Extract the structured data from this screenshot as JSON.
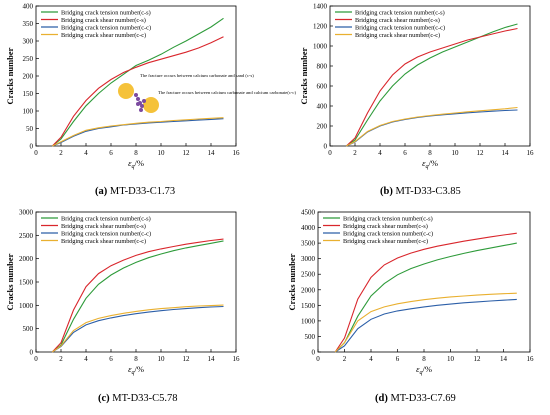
{
  "chart_data": [
    {
      "type": "line",
      "caption_letter": "(a)",
      "caption_name": "MT-D33-C1.73",
      "ylabel": "Cracks number",
      "xlabel": "ε",
      "xlabel_sub": "q",
      "xlabel_suffix": "/%",
      "xlim": [
        0,
        16
      ],
      "ylim": [
        0,
        400
      ],
      "xticks": [
        0,
        2,
        4,
        6,
        8,
        10,
        12,
        14,
        16
      ],
      "yticks": [
        0,
        50,
        100,
        150,
        200,
        250,
        300,
        350,
        400
      ],
      "legend_position": "top-left",
      "series": [
        {
          "name": "Bridging crack tension number(c-s)",
          "color": "#2e9b3a",
          "x": [
            1.3,
            2,
            3,
            4,
            5,
            6,
            7,
            8,
            9,
            10,
            11,
            12,
            13,
            14,
            15
          ],
          "y": [
            0,
            20,
            70,
            115,
            150,
            180,
            205,
            230,
            245,
            262,
            282,
            300,
            320,
            340,
            365
          ]
        },
        {
          "name": "Bridging crack shear number(c-s)",
          "color": "#d9262c",
          "x": [
            1.3,
            2,
            3,
            4,
            5,
            6,
            7,
            8,
            9,
            10,
            11,
            12,
            13,
            14,
            15
          ],
          "y": [
            0,
            25,
            85,
            130,
            165,
            190,
            210,
            225,
            238,
            248,
            258,
            268,
            280,
            295,
            312
          ]
        },
        {
          "name": "Bridging crack tension number(c-c)",
          "color": "#2c5fa8",
          "x": [
            1.3,
            2,
            3,
            4,
            5,
            6,
            7,
            8,
            9,
            10,
            11,
            12,
            13,
            14,
            15
          ],
          "y": [
            0,
            10,
            28,
            42,
            50,
            55,
            60,
            63,
            66,
            68,
            70,
            72,
            74,
            76,
            78
          ]
        },
        {
          "name": "Bridging crack shear number(c-c)",
          "color": "#e9b030",
          "x": [
            1.3,
            2,
            3,
            4,
            5,
            6,
            7,
            8,
            9,
            10,
            11,
            12,
            13,
            14,
            15
          ],
          "y": [
            0,
            12,
            30,
            45,
            52,
            57,
            61,
            65,
            68,
            70,
            73,
            75,
            77,
            79,
            81
          ]
        }
      ],
      "annotations": [
        "The fracture occurs between calcium carbonate and sand (c-s)",
        "The fracture occurs between calcium carbonate and calcium carbonate(c-c)"
      ]
    },
    {
      "type": "line",
      "caption_letter": "(b)",
      "caption_name": "MT-D33-C3.85",
      "ylabel": "Cracks number",
      "xlabel": "ε",
      "xlabel_sub": "q",
      "xlabel_suffix": "/%",
      "xlim": [
        0,
        16
      ],
      "ylim": [
        0,
        1400
      ],
      "xticks": [
        0,
        2,
        4,
        6,
        8,
        10,
        12,
        14,
        16
      ],
      "yticks": [
        0,
        200,
        400,
        600,
        800,
        1000,
        1200,
        1400
      ],
      "legend_position": "top-left",
      "series": [
        {
          "name": "Bridging crack tension number(c-s)",
          "color": "#2e9b3a",
          "x": [
            1.3,
            2,
            3,
            4,
            5,
            6,
            7,
            8,
            9,
            10,
            11,
            12,
            13,
            14,
            15
          ],
          "y": [
            0,
            60,
            260,
            450,
            600,
            720,
            810,
            880,
            940,
            990,
            1040,
            1090,
            1140,
            1185,
            1220
          ]
        },
        {
          "name": "Bridging crack shear number(c-s)",
          "color": "#d9262c",
          "x": [
            1.3,
            2,
            3,
            4,
            5,
            6,
            7,
            8,
            9,
            10,
            11,
            12,
            13,
            14,
            15
          ],
          "y": [
            0,
            80,
            330,
            550,
            710,
            820,
            890,
            940,
            980,
            1020,
            1060,
            1090,
            1120,
            1150,
            1175
          ]
        },
        {
          "name": "Bridging crack tension number(c-c)",
          "color": "#2c5fa8",
          "x": [
            1.3,
            2,
            3,
            4,
            5,
            6,
            7,
            8,
            9,
            10,
            11,
            12,
            13,
            14,
            15
          ],
          "y": [
            0,
            40,
            140,
            200,
            240,
            265,
            285,
            300,
            312,
            322,
            332,
            340,
            348,
            355,
            360
          ]
        },
        {
          "name": "Bridging crack shear number(c-c)",
          "color": "#e9b030",
          "x": [
            1.3,
            2,
            3,
            4,
            5,
            6,
            7,
            8,
            9,
            10,
            11,
            12,
            13,
            14,
            15
          ],
          "y": [
            0,
            45,
            145,
            205,
            245,
            270,
            290,
            305,
            318,
            330,
            342,
            352,
            362,
            372,
            385
          ]
        }
      ]
    },
    {
      "type": "line",
      "caption_letter": "(c)",
      "caption_name": "MT-D33-C5.78",
      "ylabel": "Cracks number",
      "xlabel": "ε",
      "xlabel_sub": "q",
      "xlabel_suffix": "/%",
      "xlim": [
        0,
        16
      ],
      "ylim": [
        0,
        3000
      ],
      "xticks": [
        0,
        2,
        4,
        6,
        8,
        10,
        12,
        14,
        16
      ],
      "yticks": [
        0,
        500,
        1000,
        1500,
        2000,
        2500,
        3000
      ],
      "legend_position": "top-left",
      "series": [
        {
          "name": "Bridging crack tension number(c-s)",
          "color": "#2e9b3a",
          "x": [
            1.3,
            2,
            3,
            4,
            5,
            6,
            7,
            8,
            9,
            10,
            11,
            12,
            13,
            14,
            15
          ],
          "y": [
            0,
            150,
            700,
            1150,
            1450,
            1650,
            1800,
            1920,
            2020,
            2100,
            2170,
            2230,
            2280,
            2330,
            2380
          ]
        },
        {
          "name": "Bridging crack shear number(c-s)",
          "color": "#d9262c",
          "x": [
            1.3,
            2,
            3,
            4,
            5,
            6,
            7,
            8,
            9,
            10,
            11,
            12,
            13,
            14,
            15
          ],
          "y": [
            0,
            200,
            900,
            1400,
            1680,
            1850,
            1970,
            2070,
            2150,
            2210,
            2260,
            2310,
            2350,
            2390,
            2420
          ]
        },
        {
          "name": "Bridging crack tension number(c-c)",
          "color": "#2c5fa8",
          "x": [
            1.3,
            2,
            3,
            4,
            5,
            6,
            7,
            8,
            9,
            10,
            11,
            12,
            13,
            14,
            15
          ],
          "y": [
            0,
            120,
            420,
            580,
            670,
            730,
            780,
            820,
            855,
            885,
            910,
            930,
            950,
            965,
            975
          ]
        },
        {
          "name": "Bridging crack shear number(c-c)",
          "color": "#e9b030",
          "x": [
            1.3,
            2,
            3,
            4,
            5,
            6,
            7,
            8,
            9,
            10,
            11,
            12,
            13,
            14,
            15
          ],
          "y": [
            0,
            130,
            460,
            630,
            720,
            780,
            830,
            870,
            905,
            930,
            950,
            970,
            985,
            995,
            1005
          ]
        }
      ]
    },
    {
      "type": "line",
      "caption_letter": "(d)",
      "caption_name": "MT-D33-C7.69",
      "ylabel": "Cracks number",
      "xlabel": "ε",
      "xlabel_sub": "q",
      "xlabel_suffix": "/%",
      "xlim": [
        0,
        16
      ],
      "ylim": [
        0,
        4500
      ],
      "xticks": [
        0,
        2,
        4,
        6,
        8,
        10,
        12,
        14,
        16
      ],
      "yticks": [
        0,
        500,
        1000,
        1500,
        2000,
        2500,
        3000,
        3500,
        4000,
        4500
      ],
      "legend_position": "top-left",
      "series": [
        {
          "name": "Bridging crack tension number(c-s)",
          "color": "#2e9b3a",
          "x": [
            1.3,
            2,
            3,
            4,
            5,
            6,
            7,
            8,
            9,
            10,
            11,
            12,
            13,
            14,
            15
          ],
          "y": [
            0,
            300,
            1150,
            1800,
            2200,
            2480,
            2680,
            2830,
            2960,
            3070,
            3170,
            3260,
            3340,
            3420,
            3500
          ]
        },
        {
          "name": "Bridging crack shear number(c-s)",
          "color": "#d9262c",
          "x": [
            1.3,
            2,
            3,
            4,
            5,
            6,
            7,
            8,
            9,
            10,
            11,
            12,
            13,
            14,
            15
          ],
          "y": [
            0,
            450,
            1700,
            2400,
            2800,
            3020,
            3180,
            3300,
            3400,
            3480,
            3560,
            3630,
            3700,
            3760,
            3820
          ]
        },
        {
          "name": "Bridging crack tension number(c-c)",
          "color": "#2c5fa8",
          "x": [
            1.3,
            2,
            3,
            4,
            5,
            6,
            7,
            8,
            9,
            10,
            11,
            12,
            13,
            14,
            15
          ],
          "y": [
            0,
            200,
            750,
            1050,
            1220,
            1320,
            1390,
            1450,
            1500,
            1540,
            1580,
            1610,
            1640,
            1665,
            1690
          ]
        },
        {
          "name": "Bridging crack shear number(c-c)",
          "color": "#e9b030",
          "x": [
            1.3,
            2,
            3,
            4,
            5,
            6,
            7,
            8,
            9,
            10,
            11,
            12,
            13,
            14,
            15
          ],
          "y": [
            0,
            300,
            1000,
            1300,
            1450,
            1550,
            1620,
            1680,
            1730,
            1770,
            1800,
            1830,
            1855,
            1875,
            1890
          ]
        }
      ]
    }
  ]
}
